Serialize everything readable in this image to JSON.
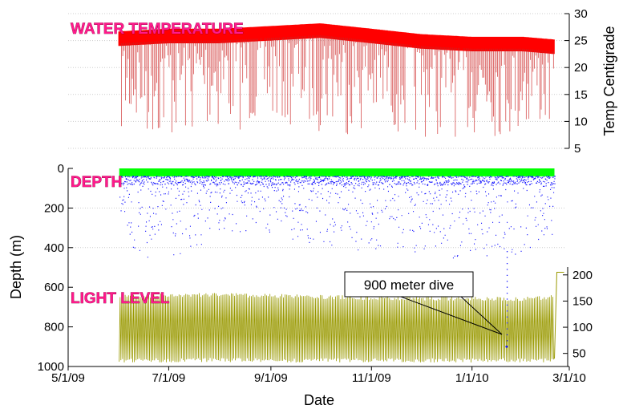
{
  "chart_data": [
    {
      "type": "line",
      "panel": "temperature",
      "label": "WATER TEMPERATURE",
      "ylabel": "Temp Centigrade",
      "ylim": [
        5,
        30
      ],
      "yticks": [
        5,
        10,
        15,
        20,
        25,
        30
      ],
      "axis_side": "right",
      "color": "#ff0000",
      "series": [
        {
          "name": "upper",
          "x": [
            "6/1/09",
            "7/1/09",
            "8/1/09",
            "9/1/09",
            "10/1/09",
            "11/1/09",
            "12/1/09",
            "1/1/10",
            "2/1/10",
            "2/20/10"
          ],
          "values": [
            25.5,
            26,
            26,
            26.5,
            27,
            26,
            25,
            24.5,
            24.5,
            24
          ]
        },
        {
          "name": "dive_minimum",
          "x": [
            "6/1/09",
            "7/1/09",
            "8/1/09",
            "9/1/09",
            "10/1/09",
            "11/1/09",
            "12/1/09",
            "1/1/10",
            "2/1/10",
            "2/20/10"
          ],
          "values": [
            8,
            7,
            9,
            10,
            9,
            8,
            8,
            8,
            8,
            10
          ]
        }
      ]
    },
    {
      "type": "scatter",
      "panel": "depth",
      "label": "DEPTH",
      "ylabel": "Depth (m)",
      "ylim": [
        0,
        1000
      ],
      "yticks": [
        0,
        200,
        400,
        600,
        800,
        1000
      ],
      "axis_side": "left",
      "series": [
        {
          "name": "surface",
          "color": "#00ff00",
          "x": [
            "6/1/09",
            "2/20/10"
          ],
          "values": [
            0,
            0
          ]
        },
        {
          "name": "dives",
          "color": "#0000ff",
          "x": [
            "6/1/09",
            "7/1/09",
            "8/1/09",
            "9/1/09",
            "10/1/09",
            "11/1/09",
            "12/1/09",
            "1/1/10",
            "2/1/10",
            "2/20/10"
          ],
          "values": [
            420,
            480,
            330,
            350,
            390,
            420,
            440,
            470,
            450,
            330
          ]
        },
        {
          "name": "deep_dive",
          "color": "#0000ff",
          "x": [
            "1/22/10"
          ],
          "values": [
            900
          ]
        }
      ]
    },
    {
      "type": "line",
      "panel": "light",
      "label": "LIGHT LEVEL",
      "ylim": [
        25,
        215
      ],
      "yticks": [
        50,
        100,
        150,
        200
      ],
      "axis_side": "right",
      "color": "#999900",
      "series": [
        {
          "name": "day",
          "x": [
            "6/1/09",
            "7/1/09",
            "8/1/09",
            "9/1/09",
            "10/1/09",
            "11/1/09",
            "12/1/09",
            "1/1/10",
            "2/1/10",
            "2/20/10"
          ],
          "values": [
            160,
            160,
            162,
            160,
            158,
            156,
            155,
            155,
            154,
            158
          ]
        },
        {
          "name": "night",
          "x": [
            "6/1/09",
            "7/1/09",
            "8/1/09",
            "9/1/09",
            "10/1/09",
            "11/1/09",
            "12/1/09",
            "1/1/10",
            "2/1/10",
            "2/20/10"
          ],
          "values": [
            35,
            35,
            36,
            35,
            35,
            35,
            35,
            35,
            35,
            35
          ]
        }
      ]
    }
  ],
  "xaxis": {
    "label": "Date",
    "ticks": [
      "5/1/09",
      "7/1/09",
      "9/1/09",
      "11/1/09",
      "1/1/10",
      "3/1/10"
    ]
  },
  "annotation": {
    "text": "900 meter dive"
  },
  "colors": {
    "temp": "#ff0000",
    "temp_dark": "#cc2222",
    "depth_surface": "#00ff00",
    "depth_dive": "#1a1aff",
    "light": "#999900"
  }
}
